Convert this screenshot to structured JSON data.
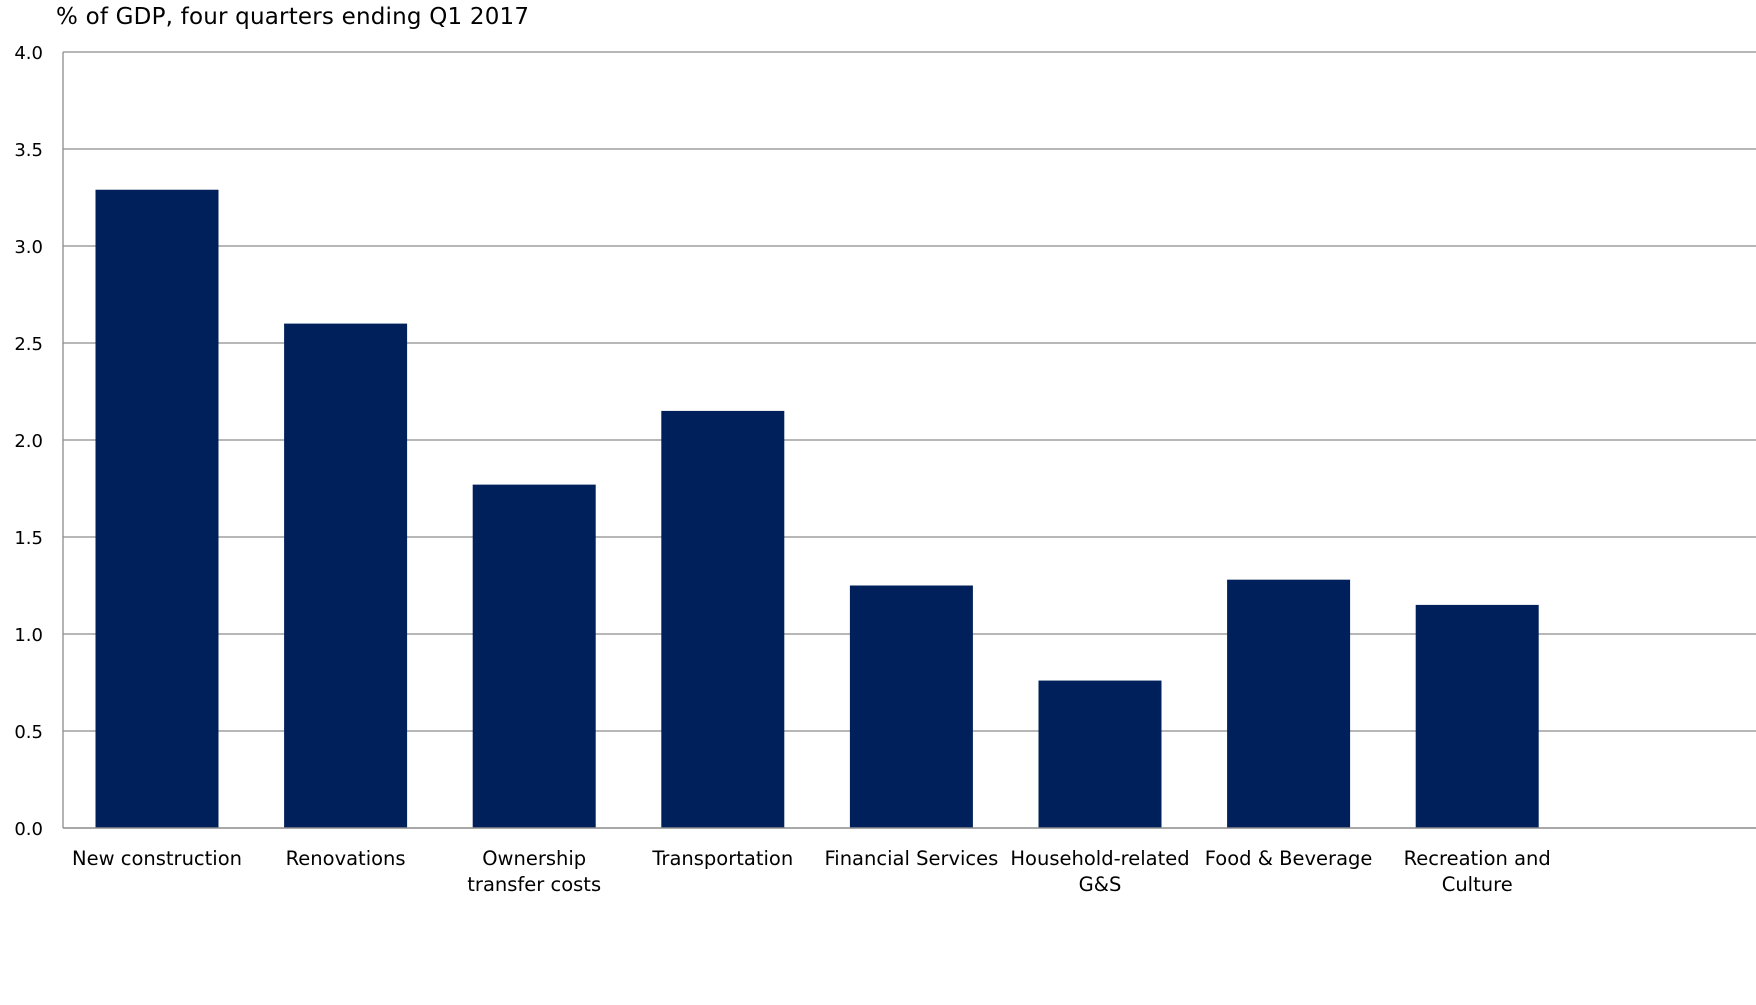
{
  "chart_data": {
    "type": "bar",
    "title": "% of GDP, four quarters ending Q1 2017",
    "xlabel": "",
    "ylabel": "",
    "ylim": [
      0,
      4.0
    ],
    "yticks": [
      "0.0",
      "0.5",
      "1.0",
      "1.5",
      "2.0",
      "2.5",
      "3.0",
      "3.5",
      "4.0"
    ],
    "grid": true,
    "legend": "none",
    "bar_color": "#00205b",
    "gridline_color": "#8c8c8c",
    "categories": [
      [
        "New construction"
      ],
      [
        "Renovations"
      ],
      [
        "Ownership",
        "transfer costs"
      ],
      [
        "Transportation"
      ],
      [
        "Financial Services"
      ],
      [
        "Household-related",
        "G&S"
      ],
      [
        "Food & Beverage"
      ],
      [
        "Recreation and",
        "Culture"
      ]
    ],
    "values": [
      3.29,
      2.6,
      1.77,
      2.15,
      1.25,
      0.76,
      1.28,
      1.15
    ]
  }
}
